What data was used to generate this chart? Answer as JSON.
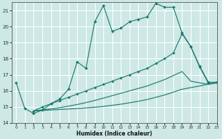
{
  "bg_color": "#cde8e5",
  "grid_color": "#ffffff",
  "line_color": "#1a7a6e",
  "xlabel": "Humidex (Indice chaleur)",
  "xlim": [
    -0.5,
    23
  ],
  "ylim": [
    14,
    21.5
  ],
  "yticks": [
    14,
    15,
    16,
    17,
    18,
    19,
    20,
    21
  ],
  "xticks": [
    0,
    1,
    2,
    3,
    4,
    5,
    6,
    7,
    8,
    9,
    10,
    11,
    12,
    13,
    14,
    15,
    16,
    17,
    18,
    19,
    20,
    21,
    22,
    23
  ],
  "line1_x": [
    0,
    1,
    2,
    3,
    4,
    5,
    6,
    7,
    8,
    9,
    10,
    11,
    12,
    13,
    14,
    15,
    16,
    17,
    18,
    19,
    20,
    21,
    22,
    23
  ],
  "line1_y": [
    16.5,
    14.9,
    14.6,
    14.8,
    15.2,
    15.5,
    16.1,
    17.8,
    17.4,
    20.3,
    21.3,
    19.7,
    19.9,
    20.3,
    20.45,
    20.6,
    21.45,
    21.2,
    21.2,
    19.6,
    18.75,
    17.5,
    16.5,
    16.55
  ],
  "line2_x": [
    2,
    3,
    4,
    5,
    6,
    7,
    8,
    9,
    10,
    11,
    12,
    13,
    14,
    15,
    16,
    17,
    18,
    19,
    20,
    21,
    22,
    23
  ],
  "line2_y": [
    14.75,
    15.0,
    15.2,
    15.4,
    15.6,
    15.8,
    16.0,
    16.2,
    16.4,
    16.6,
    16.8,
    17.0,
    17.2,
    17.4,
    17.7,
    18.0,
    18.35,
    19.55,
    18.75,
    17.55,
    16.55,
    16.5
  ],
  "line3_x": [
    2,
    3,
    4,
    5,
    6,
    7,
    8,
    9,
    10,
    11,
    12,
    13,
    14,
    15,
    16,
    17,
    18,
    19,
    20,
    21,
    22,
    23
  ],
  "line3_y": [
    14.75,
    14.82,
    14.88,
    14.95,
    15.05,
    15.15,
    15.27,
    15.4,
    15.55,
    15.7,
    15.85,
    16.0,
    16.15,
    16.3,
    16.5,
    16.7,
    16.95,
    17.2,
    16.6,
    16.5,
    16.4,
    16.5
  ],
  "line4_x": [
    2,
    3,
    4,
    5,
    6,
    7,
    8,
    9,
    10,
    11,
    12,
    13,
    14,
    15,
    16,
    17,
    18,
    19,
    20,
    21,
    22,
    23
  ],
  "line4_y": [
    14.75,
    14.78,
    14.81,
    14.84,
    14.87,
    14.9,
    14.94,
    14.98,
    15.03,
    15.1,
    15.17,
    15.26,
    15.35,
    15.46,
    15.6,
    15.74,
    15.92,
    16.1,
    16.2,
    16.3,
    16.42,
    16.5
  ]
}
